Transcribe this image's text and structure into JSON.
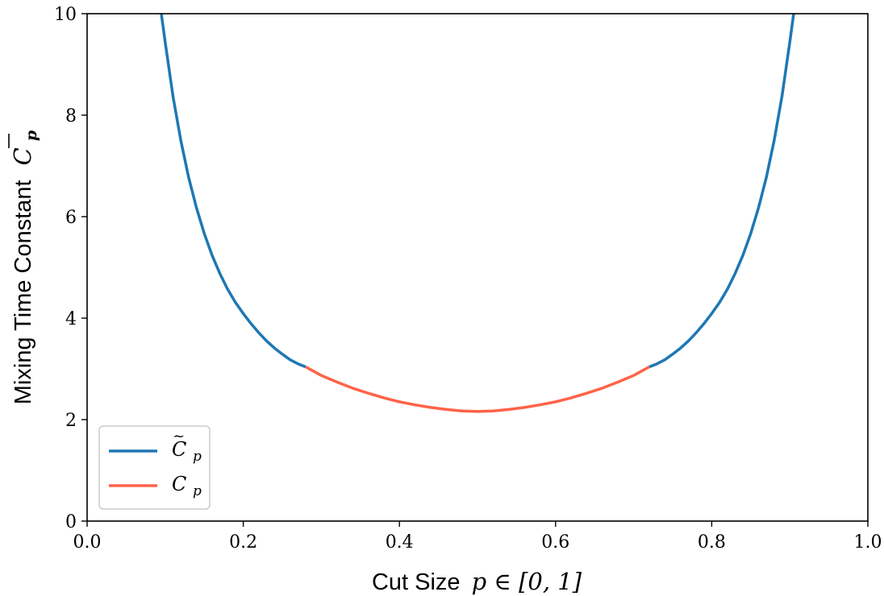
{
  "chart_data": {
    "type": "line",
    "xlabel": {
      "text": "Cut Size",
      "math": "p ∈ [0, 1]"
    },
    "ylabel": {
      "text": "Mixing Time Constant",
      "math_base": "C",
      "math_sub": "p"
    },
    "xlim": [
      0.0,
      1.0
    ],
    "ylim": [
      0,
      10
    ],
    "xticks": [
      "0.0",
      "0.2",
      "0.4",
      "0.6",
      "0.8",
      "1.0"
    ],
    "yticks": [
      "0",
      "2",
      "4",
      "6",
      "8",
      "10"
    ],
    "grid": false,
    "legend_position": "lower-left",
    "series": [
      {
        "name": "C̃_p",
        "label_base": "C",
        "label_sub": "p",
        "label_tilde": true,
        "color": "#1f77b4",
        "segments": [
          {
            "x": [
              0.095,
              0.1,
              0.11,
              0.12,
              0.13,
              0.14,
              0.15,
              0.16,
              0.17,
              0.18,
              0.19,
              0.2,
              0.21,
              0.22,
              0.23,
              0.24,
              0.25,
              0.26,
              0.27,
              0.28
            ],
            "y": [
              10.0,
              9.44,
              8.37,
              7.5,
              6.78,
              6.18,
              5.67,
              5.24,
              4.88,
              4.57,
              4.31,
              4.09,
              3.89,
              3.71,
              3.55,
              3.41,
              3.29,
              3.18,
              3.1,
              3.04
            ]
          },
          {
            "x": [
              0.72,
              0.73,
              0.74,
              0.75,
              0.76,
              0.77,
              0.78,
              0.79,
              0.8,
              0.81,
              0.82,
              0.83,
              0.84,
              0.85,
              0.86,
              0.87,
              0.88,
              0.89,
              0.9,
              0.905
            ],
            "y": [
              3.04,
              3.1,
              3.18,
              3.29,
              3.41,
              3.55,
              3.71,
              3.89,
              4.09,
              4.31,
              4.57,
              4.88,
              5.24,
              5.67,
              6.18,
              6.78,
              7.5,
              8.37,
              9.44,
              10.0
            ]
          }
        ]
      },
      {
        "name": "C_p",
        "label_base": "C",
        "label_sub": "p",
        "label_tilde": false,
        "color": "#ff6347",
        "segments": [
          {
            "x": [
              0.28,
              0.3,
              0.32,
              0.34,
              0.36,
              0.38,
              0.4,
              0.42,
              0.44,
              0.46,
              0.48,
              0.5,
              0.52,
              0.54,
              0.56,
              0.58,
              0.6,
              0.62,
              0.64,
              0.66,
              0.68,
              0.7,
              0.72
            ],
            "y": [
              3.04,
              2.87,
              2.74,
              2.62,
              2.52,
              2.43,
              2.35,
              2.29,
              2.24,
              2.2,
              2.17,
              2.16,
              2.17,
              2.2,
              2.24,
              2.29,
              2.35,
              2.43,
              2.52,
              2.62,
              2.74,
              2.87,
              3.04
            ]
          }
        ]
      }
    ]
  }
}
